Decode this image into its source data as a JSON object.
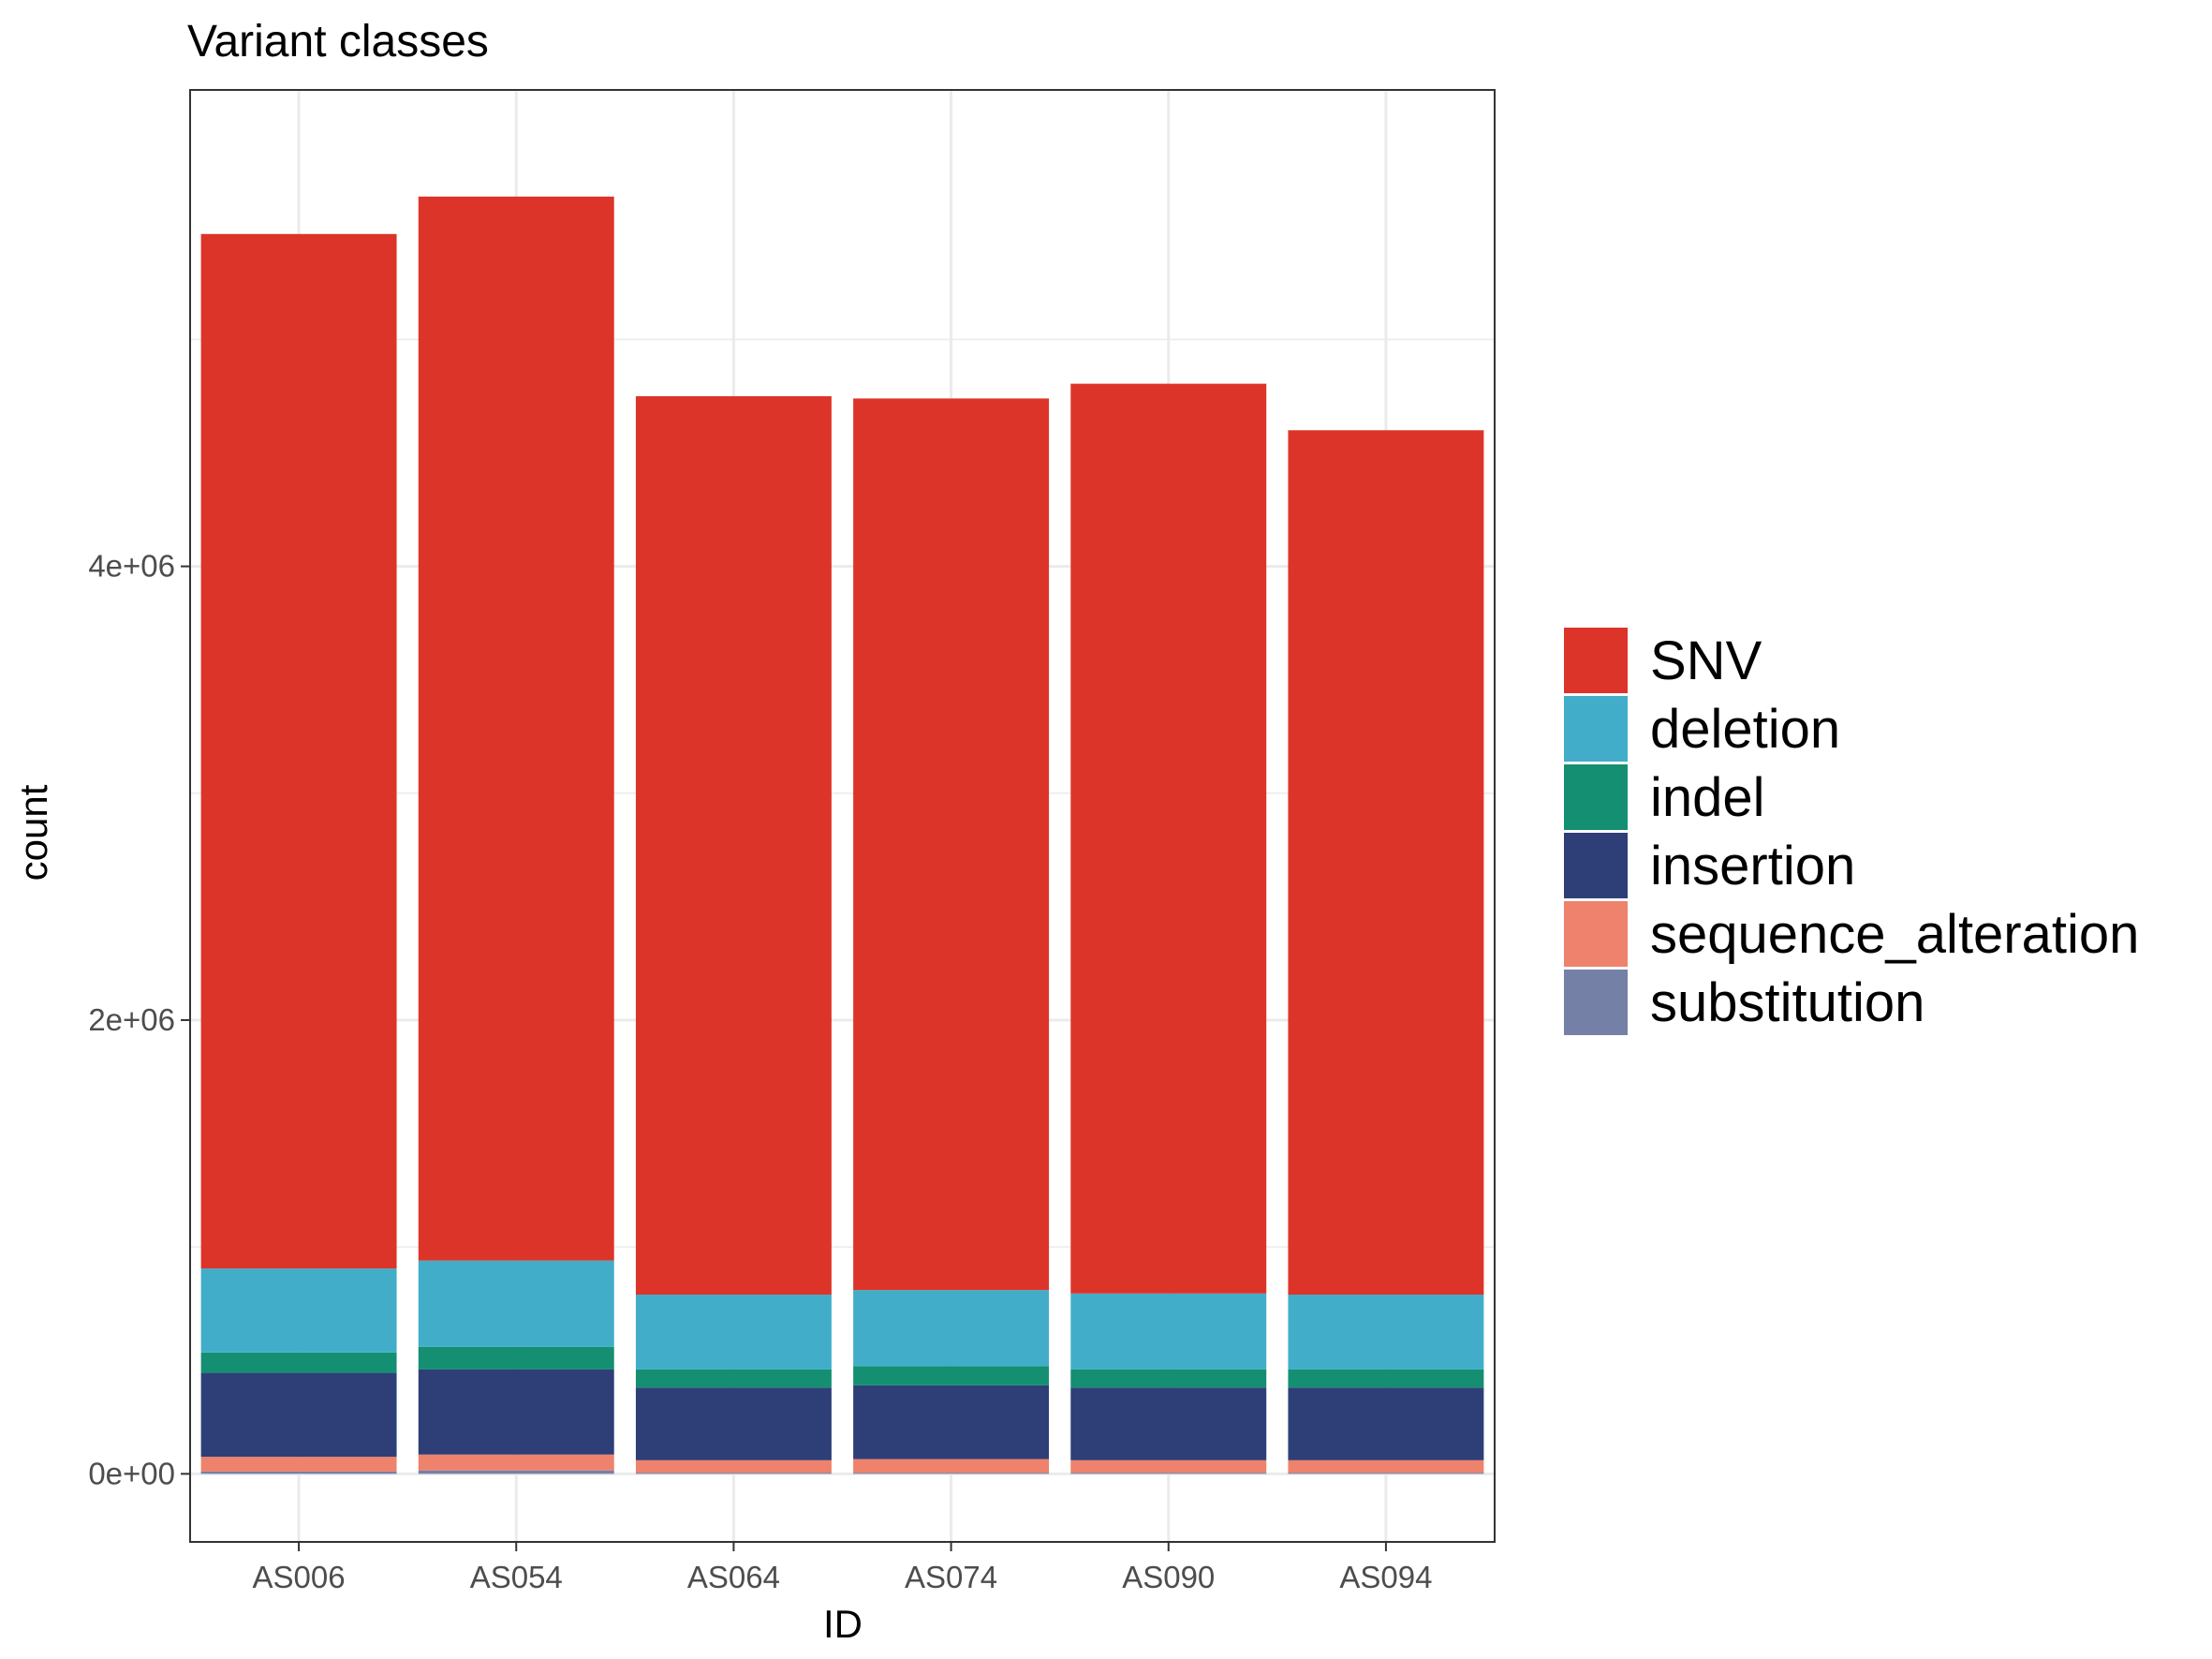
{
  "chart_data": {
    "type": "bar",
    "stacked": true,
    "title": "Variant classes",
    "xlabel": "ID",
    "ylabel": "count",
    "ylim": [
      -300000,
      6100000
    ],
    "y_ticks": [
      {
        "value": 0,
        "label": "0e+00"
      },
      {
        "value": 2000000,
        "label": "2e+06"
      },
      {
        "value": 4000000,
        "label": "4e+06"
      }
    ],
    "y_minor_gridlines": [
      1000000,
      3000000,
      5000000
    ],
    "grid": true,
    "legend_position": "right",
    "categories": [
      "AS006",
      "AS054",
      "AS064",
      "AS074",
      "AS090",
      "AS094"
    ],
    "series": [
      {
        "name": "substitution",
        "color": "#7580a7",
        "values": [
          10000,
          15000,
          5000,
          5000,
          5000,
          5000
        ]
      },
      {
        "name": "sequence_alteration",
        "color": "#ee826c",
        "values": [
          65000,
          70000,
          55000,
          60000,
          55000,
          55000
        ]
      },
      {
        "name": "insertion",
        "color": "#2e3f77",
        "values": [
          370000,
          375000,
          320000,
          325000,
          320000,
          320000
        ]
      },
      {
        "name": "indel",
        "color": "#148f72",
        "values": [
          90000,
          100000,
          80000,
          85000,
          80000,
          80000
        ]
      },
      {
        "name": "deletion",
        "color": "#41adc9",
        "values": [
          370000,
          380000,
          330000,
          335000,
          335000,
          330000
        ]
      },
      {
        "name": "SNV",
        "color": "#dd3429",
        "values": [
          4560000,
          4690000,
          3960000,
          3930000,
          4010000,
          3810000
        ]
      }
    ],
    "legend_order": [
      "SNV",
      "deletion",
      "indel",
      "insertion",
      "sequence_alteration",
      "substitution"
    ]
  }
}
